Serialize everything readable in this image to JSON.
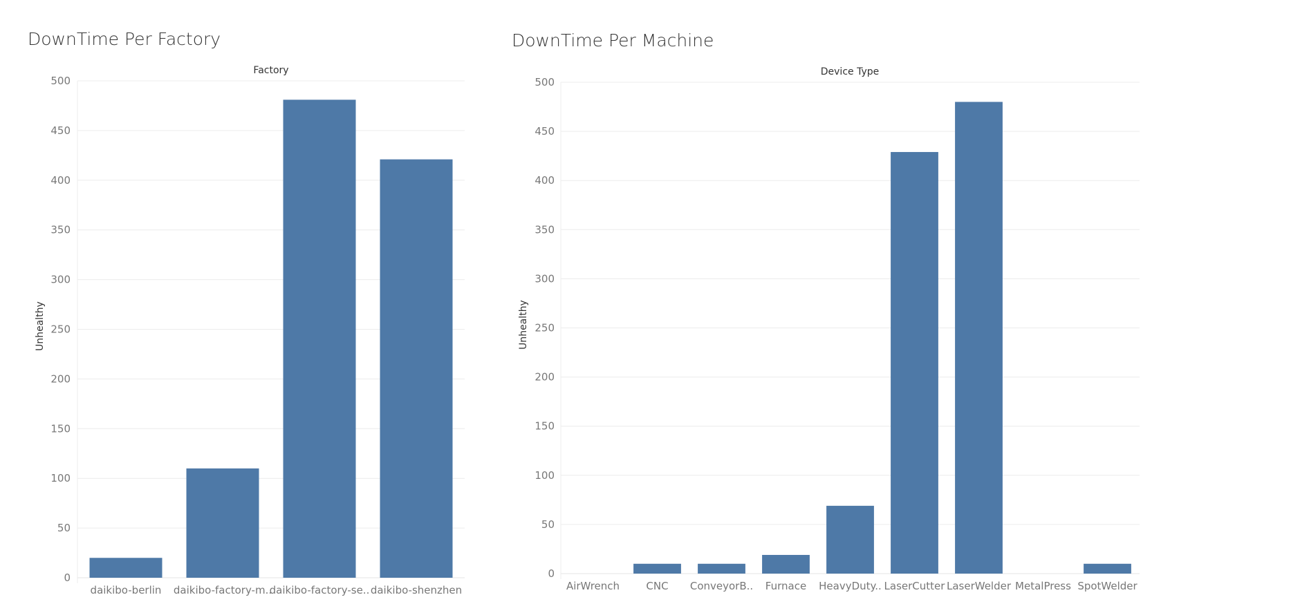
{
  "colors": {
    "bar": "#4e79a7",
    "grid": "#ececec",
    "tick_text": "#777777",
    "axis_title": "#333333"
  },
  "chart_data": [
    {
      "type": "bar",
      "title": "DownTime Per Factory",
      "header": "Factory",
      "ylabel": "Unhealthy",
      "xlabel": "",
      "ylim": [
        0,
        500
      ],
      "yticks": [
        0,
        50,
        100,
        150,
        200,
        250,
        300,
        350,
        400,
        450,
        500
      ],
      "grid": true,
      "categories": [
        "daikibo-berlin",
        "daikibo-factory-m..",
        "daikibo-factory-se..",
        "daikibo-shenzhen"
      ],
      "values": [
        20,
        110,
        481,
        421
      ]
    },
    {
      "type": "bar",
      "title": "DownTime Per Machine",
      "header": "Device Type",
      "ylabel": "Unhealthy",
      "xlabel": "",
      "ylim": [
        0,
        500
      ],
      "yticks": [
        0,
        50,
        100,
        150,
        200,
        250,
        300,
        350,
        400,
        450,
        500
      ],
      "grid": true,
      "categories": [
        "AirWrench",
        "CNC",
        "ConveyorB..",
        "Furnace",
        "HeavyDuty..",
        "LaserCutter",
        "LaserWelder",
        "MetalPress",
        "SpotWelder"
      ],
      "values": [
        0,
        10,
        10,
        19,
        69,
        429,
        480,
        0,
        10
      ]
    }
  ]
}
